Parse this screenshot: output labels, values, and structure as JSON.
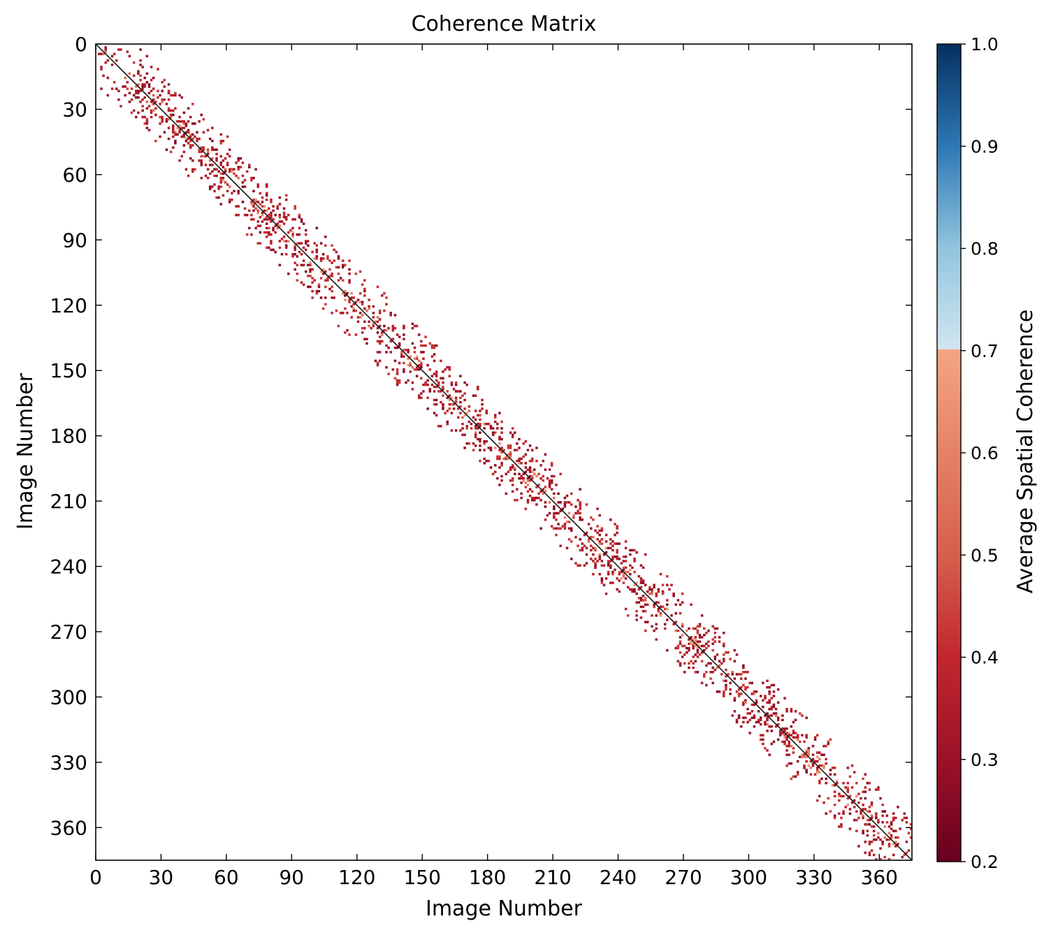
{
  "chart_data": {
    "type": "heatmap",
    "title": "Coherence Matrix",
    "xlabel": "Image Number",
    "ylabel": "Image Number",
    "n_images": 375,
    "x_ticks": [
      "0",
      "30",
      "60",
      "90",
      "120",
      "150",
      "180",
      "210",
      "240",
      "270",
      "300",
      "330",
      "360"
    ],
    "y_ticks": [
      "0",
      "30",
      "60",
      "90",
      "120",
      "150",
      "180",
      "210",
      "240",
      "270",
      "300",
      "330",
      "360"
    ],
    "xlim": [
      0,
      375
    ],
    "ylim": [
      375,
      0
    ],
    "colorbar": {
      "label": "Average Spatial Coherence",
      "ticks": [
        "0.2",
        "0.3",
        "0.4",
        "0.5",
        "0.6",
        "0.7",
        "0.8",
        "0.9",
        "1.0"
      ],
      "range": [
        0.2,
        1.0
      ],
      "colormap": "RdBu (diverging, red low / blue high)",
      "colors": {
        "0.2": "#67001f",
        "0.3": "#9c1127",
        "0.4": "#c2272e",
        "0.5": "#d6604d",
        "0.6": "#e58267",
        "0.7": "#f4a582",
        "0.7b": "#d1e5f0",
        "0.8": "#92c5de",
        "0.9": "#2f79b5",
        "1.0": "#053061"
      }
    },
    "pattern": {
      "description": "Sparse symmetric band around main diagonal; diagonal value 1.0 (black line); off-diagonal pairs mostly 0.2-0.4 with some 0.5-0.65 near the diagonal; empty elsewhere",
      "band_half_width_images": 18,
      "diagonal_value": 1.0,
      "typical_offdiag_range": [
        0.25,
        0.45
      ],
      "occasional_high_range": [
        0.5,
        0.68
      ]
    },
    "grid": false,
    "legend": "none"
  }
}
